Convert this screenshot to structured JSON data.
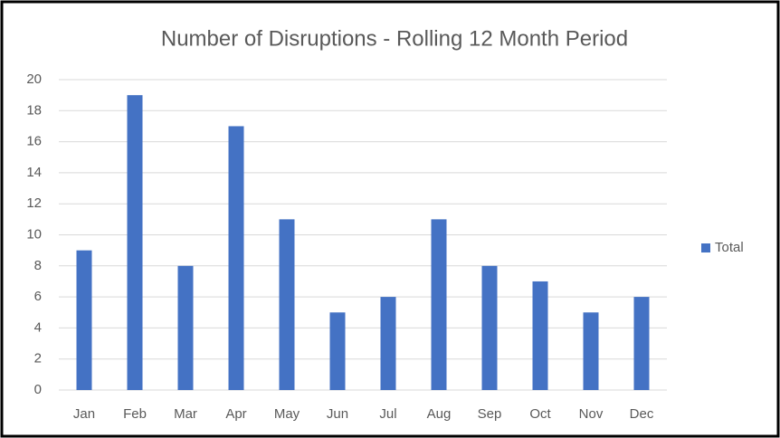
{
  "chart_data": {
    "type": "bar",
    "title": "Number of Disruptions - Rolling 12 Month Period",
    "categories": [
      "Jan",
      "Feb",
      "Mar",
      "Apr",
      "May",
      "Jun",
      "Jul",
      "Aug",
      "Sep",
      "Oct",
      "Nov",
      "Dec"
    ],
    "series": [
      {
        "name": "Total",
        "color": "#4472c4",
        "values": [
          9,
          19,
          8,
          17,
          11,
          5,
          6,
          11,
          8,
          7,
          5,
          6
        ]
      }
    ],
    "ylim": [
      0,
      20
    ],
    "yticks": [
      0,
      2,
      4,
      6,
      8,
      10,
      12,
      14,
      16,
      18,
      20
    ],
    "grid": true,
    "legend": "right"
  }
}
